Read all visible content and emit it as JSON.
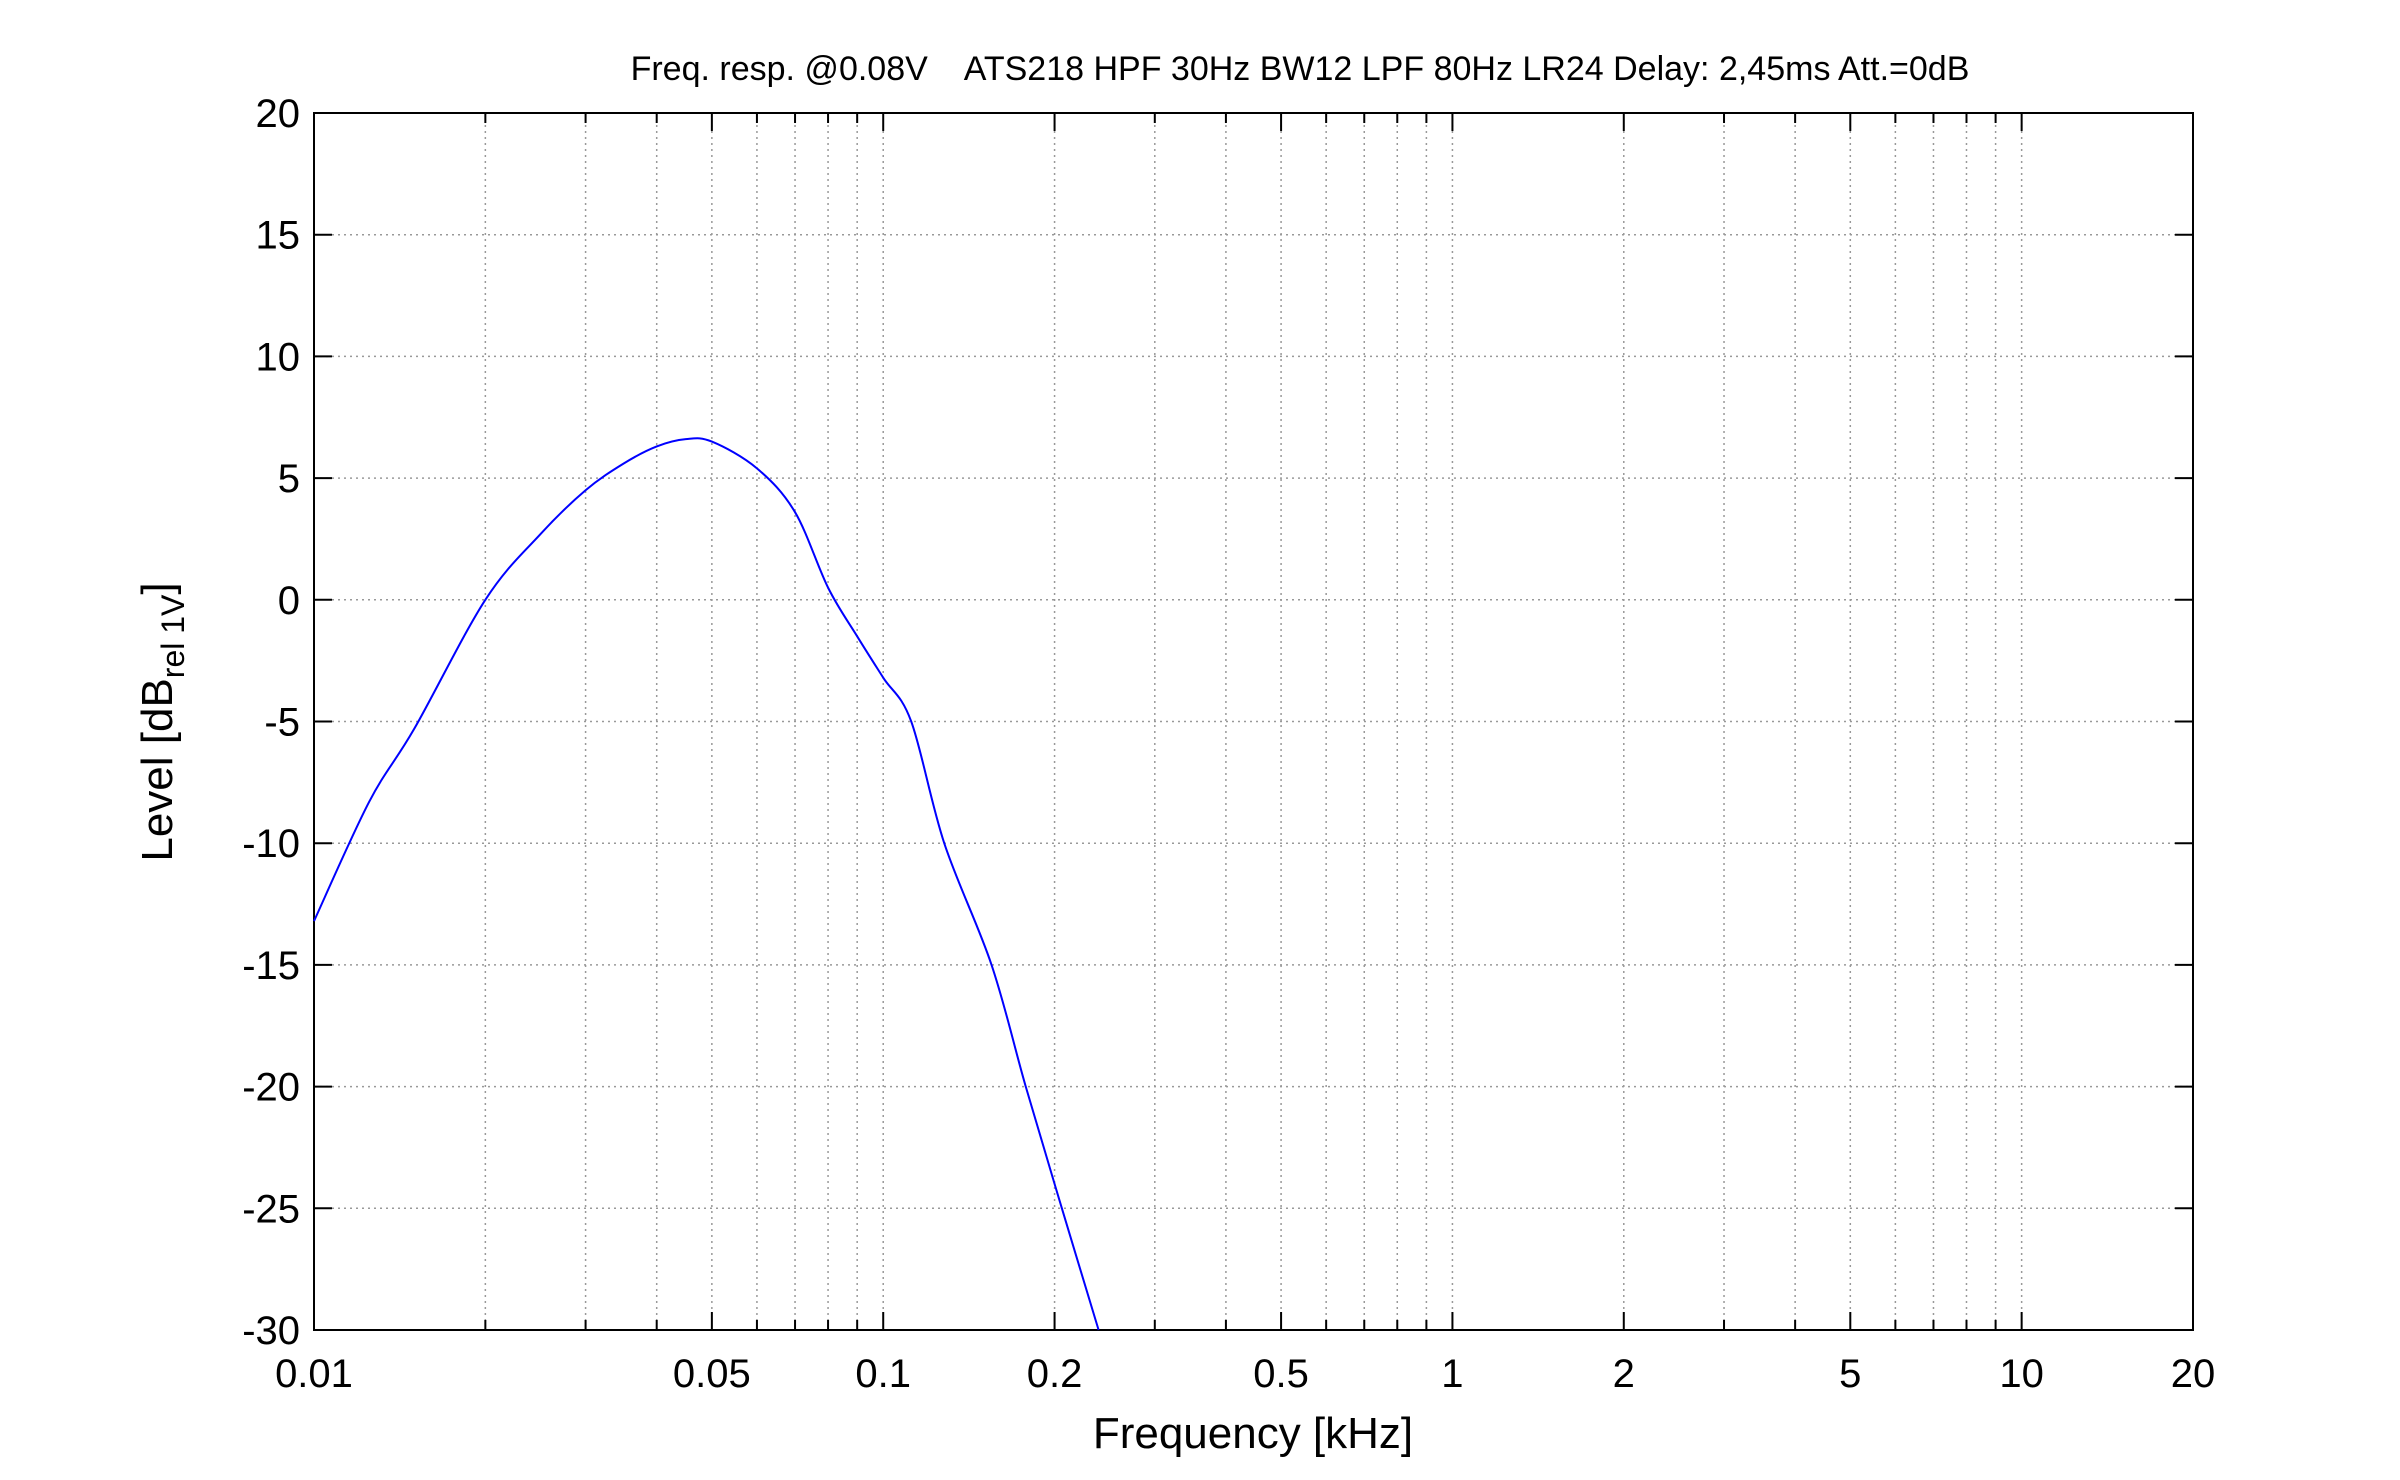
{
  "chart_data": {
    "type": "line",
    "title": "Freq. resp. @0.08V    ATS218 HPF 30Hz BW12 LPF 80Hz LR24 Delay: 2,45ms Att.=0dB",
    "xlabel": "Frequency [kHz]",
    "ylabel": {
      "main": "Level [dB",
      "sub": "rel 1V",
      "tail": "]"
    },
    "xscale": "log",
    "xlim": [
      0.01,
      20
    ],
    "ylim": [
      -30,
      20
    ],
    "xticks": [
      0.01,
      0.05,
      0.1,
      0.2,
      0.5,
      1,
      2,
      5,
      10,
      20
    ],
    "xminorticks": [
      0.02,
      0.03,
      0.04,
      0.06,
      0.07,
      0.08,
      0.09,
      0.3,
      0.4,
      0.6,
      0.7,
      0.8,
      0.9,
      3,
      4,
      6,
      7,
      8,
      9
    ],
    "yticks": [
      -30,
      -25,
      -20,
      -15,
      -10,
      -5,
      0,
      5,
      10,
      15,
      20
    ],
    "grid": true,
    "series": [
      {
        "color": "#0000ff",
        "x": [
          0.01,
          0.0125,
          0.015,
          0.02,
          0.025,
          0.03,
          0.035,
          0.04,
          0.045,
          0.05,
          0.06,
          0.07,
          0.08,
          0.09,
          0.1,
          0.112,
          0.128,
          0.155,
          0.178,
          0.206,
          0.239
        ],
        "values": [
          -13.2,
          -8.3,
          -5.3,
          0,
          2.7,
          4.5,
          5.6,
          6.3,
          6.6,
          6.5,
          5.4,
          3.6,
          0.5,
          -1.5,
          -3.2,
          -5,
          -10,
          -15,
          -20,
          -25,
          -30
        ]
      }
    ]
  }
}
